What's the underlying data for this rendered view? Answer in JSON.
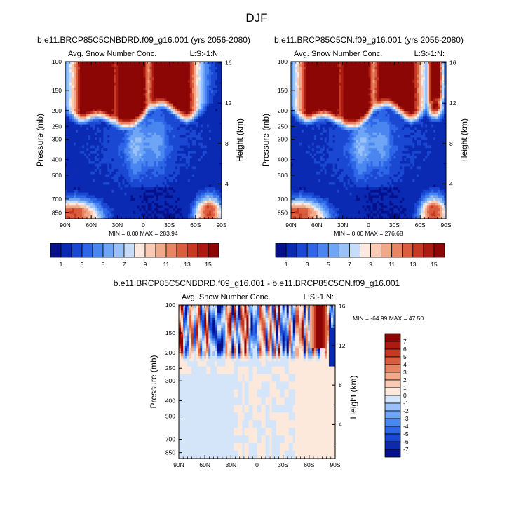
{
  "figure": {
    "title": "DJF"
  },
  "chart_data": [
    {
      "type": "heatmap",
      "title": "b.e11.BRCP85C5CNBDRD.f09_g16.001 (yrs 2056-2080)",
      "left_label": "Avg. Snow Number Conc.",
      "right_label": "L:S:-1:N:",
      "xlabel": "",
      "ylabel": "Pressure (mb)",
      "ylabel_right": "Height (km)",
      "x_ticks": [
        "90N",
        "60N",
        "30N",
        "0",
        "30S",
        "60S",
        "90S"
      ],
      "y_ticks": [
        "100",
        "150",
        "200",
        "250",
        "300",
        "400",
        "500",
        "700",
        "850"
      ],
      "y_right_ticks": [
        "16",
        "12",
        "8",
        "4"
      ],
      "min_label": "MIN =   0.00  MAX = 283.94",
      "min": 0.0,
      "max": 283.94,
      "colorbar": {
        "orientation": "horizontal",
        "labels": [
          "1",
          "3",
          "5",
          "7",
          "9",
          "11",
          "13",
          "15"
        ]
      },
      "variant": "A"
    },
    {
      "type": "heatmap",
      "title": "b.e11.BRCP85C5CN.f09_g16.001 (yrs 2056-2080)",
      "left_label": "Avg. Snow Number Conc.",
      "right_label": "L:S:-1:N:",
      "xlabel": "",
      "ylabel": "Pressure (mb)",
      "ylabel_right": "Height (km)",
      "x_ticks": [
        "90N",
        "60N",
        "30N",
        "0",
        "30S",
        "60S",
        "90S"
      ],
      "y_ticks": [
        "100",
        "150",
        "200",
        "250",
        "300",
        "400",
        "500",
        "700",
        "850"
      ],
      "y_right_ticks": [
        "16",
        "12",
        "8",
        "4"
      ],
      "min_label": "MIN =   0.00  MAX = 276.68",
      "min": 0.0,
      "max": 276.68,
      "colorbar": {
        "orientation": "horizontal",
        "labels": [
          "1",
          "3",
          "5",
          "7",
          "9",
          "11",
          "13",
          "15"
        ]
      },
      "variant": "B"
    },
    {
      "type": "heatmap",
      "title": "b.e11.BRCP85C5CNBDRD.f09_g16.001 - b.e11.BRCP85C5CN.f09_g16.001",
      "left_label": "Avg. Snow Number Conc.",
      "right_label": "L:S:-1:N:",
      "xlabel": "",
      "ylabel": "Pressure (mb)",
      "ylabel_right": "Height (km)",
      "x_ticks": [
        "90N",
        "60N",
        "30N",
        "0",
        "30S",
        "60S",
        "90S"
      ],
      "y_ticks": [
        "100",
        "150",
        "200",
        "250",
        "300",
        "400",
        "500",
        "700",
        "850"
      ],
      "y_right_ticks": [
        "16",
        "12",
        "8",
        "4"
      ],
      "min_label": "MIN = -64.99  MAX =  47.50",
      "min": -64.99,
      "max": 47.5,
      "colorbar": {
        "orientation": "vertical",
        "labels": [
          "7",
          "6",
          "5",
          "4",
          "3",
          "2",
          "1",
          "0",
          "-1",
          "-2",
          "-3",
          "-4",
          "-5",
          "-6",
          "-7"
        ]
      },
      "variant": "D"
    }
  ],
  "colors": {
    "seq16": [
      "#05108a",
      "#0a2ab4",
      "#1a48d2",
      "#2d66e6",
      "#4a86f0",
      "#6fa5f5",
      "#9ac1f7",
      "#c7dcf8",
      "#fde9df",
      "#f9cbb5",
      "#f2a98b",
      "#e88563",
      "#da5d3e",
      "#c63a24",
      "#ac1a12",
      "#8c0606"
    ],
    "div16": [
      "#05108a",
      "#0a2ab4",
      "#1a48d2",
      "#2d66e6",
      "#4a86f0",
      "#6fa5f5",
      "#9ac1f7",
      "#d4e5fa",
      "#fde9db",
      "#f9cbb5",
      "#f2a98b",
      "#e88563",
      "#da5d3e",
      "#c63a24",
      "#ac1a12",
      "#8c0606"
    ]
  }
}
